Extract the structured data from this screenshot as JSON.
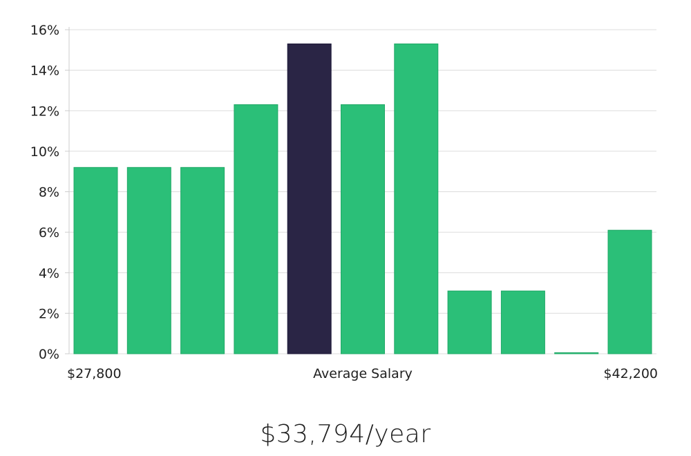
{
  "chart_data": {
    "type": "bar",
    "categories": [
      "1",
      "2",
      "3",
      "4",
      "5",
      "6",
      "7",
      "8",
      "9",
      "10",
      "11"
    ],
    "values": [
      9.2,
      9.2,
      9.2,
      12.3,
      15.3,
      12.3,
      15.3,
      3.1,
      3.1,
      0.0,
      6.1
    ],
    "highlight_index": 4,
    "ylim": [
      0,
      16
    ],
    "yticks": [
      0,
      2,
      4,
      6,
      8,
      10,
      12,
      14,
      16
    ],
    "ytick_suffix": "%",
    "x_labels": {
      "left": "$27,800",
      "center": "Average Salary",
      "right": "$42,200"
    },
    "grid": true,
    "colors": {
      "bar": "#2bbf78",
      "bar_stroke": "#1fa866",
      "highlight": "#2a2545",
      "grid": "#dcdcdc",
      "axis": "#cccccc"
    }
  },
  "headline": "$33,794/year"
}
